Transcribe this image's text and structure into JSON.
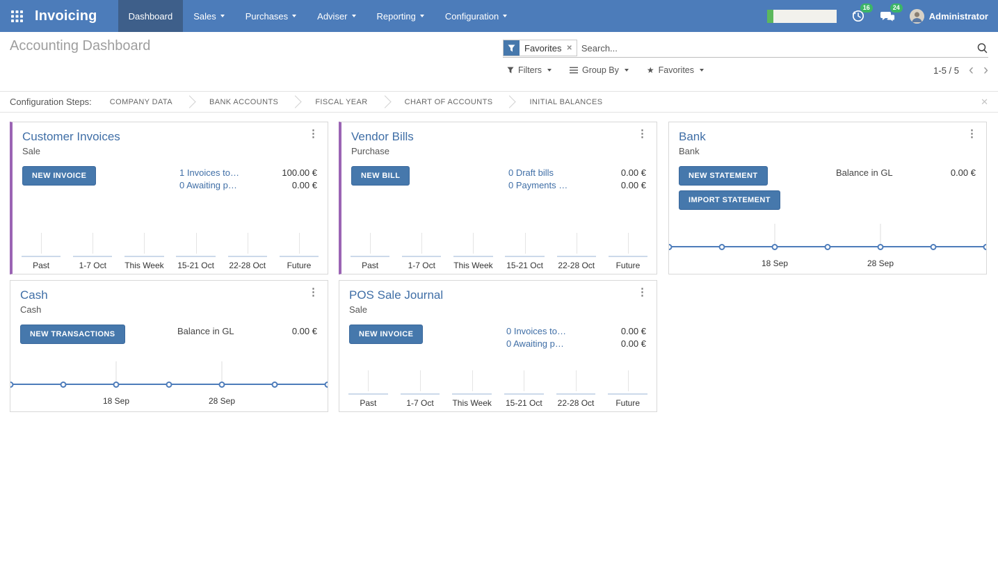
{
  "nav": {
    "app_name": "Invoicing",
    "items": [
      {
        "label": "Dashboard",
        "active": true,
        "dropdown": false
      },
      {
        "label": "Sales",
        "active": false,
        "dropdown": true
      },
      {
        "label": "Purchases",
        "active": false,
        "dropdown": true
      },
      {
        "label": "Adviser",
        "active": false,
        "dropdown": true
      },
      {
        "label": "Reporting",
        "active": false,
        "dropdown": true
      },
      {
        "label": "Configuration",
        "active": false,
        "dropdown": true
      }
    ],
    "systray": {
      "activity_badge": "16",
      "message_badge": "24",
      "user_name": "Administrator"
    }
  },
  "control_panel": {
    "title": "Accounting Dashboard",
    "search": {
      "facet_label": "Favorites",
      "placeholder": "Search..."
    },
    "buttons": [
      {
        "label": "Filters"
      },
      {
        "label": "Group By"
      },
      {
        "label": "Favorites"
      }
    ],
    "pager": {
      "text": "1-5 / 5"
    }
  },
  "config_steps": {
    "label": "Configuration Steps:",
    "steps": [
      "COMPANY DATA",
      "BANK ACCOUNTS",
      "FISCAL YEAR",
      "CHART OF ACCOUNTS",
      "INITIAL BALANCES"
    ]
  },
  "colors": {
    "navbar": "#4c7cba",
    "navbar_active": "#3e5f8a",
    "accent_purple": "#9b64b4",
    "button_blue": "#4678ac",
    "badge_green": "#3cb567",
    "link_blue": "#3f6ea6",
    "chart_line_blue": "#4d7cba",
    "progress_green": "#5cb85c"
  },
  "cards": [
    {
      "id": "customer-invoices",
      "title": "Customer Invoices",
      "subtitle": "Sale",
      "accent": true,
      "buttons": [
        "NEW INVOICE"
      ],
      "rows": [
        {
          "label": "1 Invoices to…",
          "link": true,
          "amount": "100.00 €"
        },
        {
          "label": "0 Awaiting p…",
          "link": true,
          "amount": "0.00 €"
        }
      ],
      "chart": {
        "type": "bar",
        "categories": [
          "Past",
          "1-7 Oct",
          "This Week",
          "15-21 Oct",
          "22-28 Oct",
          "Future"
        ],
        "values": [
          0,
          0,
          0,
          0,
          0,
          0
        ]
      }
    },
    {
      "id": "vendor-bills",
      "title": "Vendor Bills",
      "subtitle": "Purchase",
      "accent": true,
      "buttons": [
        "NEW BILL"
      ],
      "rows": [
        {
          "label": "0 Draft bills",
          "link": true,
          "amount": "0.00 €"
        },
        {
          "label": "0 Payments …",
          "link": true,
          "amount": "0.00 €"
        }
      ],
      "chart": {
        "type": "bar",
        "categories": [
          "Past",
          "1-7 Oct",
          "This Week",
          "15-21 Oct",
          "22-28 Oct",
          "Future"
        ],
        "values": [
          0,
          0,
          0,
          0,
          0,
          0
        ]
      }
    },
    {
      "id": "bank",
      "title": "Bank",
      "subtitle": "Bank",
      "accent": false,
      "buttons": [
        "NEW STATEMENT",
        "IMPORT STATEMENT"
      ],
      "rows": [
        {
          "label": "Balance in GL",
          "link": false,
          "amount": "0.00 €"
        }
      ],
      "chart": {
        "type": "line",
        "points": [
          0,
          0,
          0,
          0,
          0,
          0,
          0
        ],
        "tick_labels": [
          {
            "label": "18 Sep",
            "pos": 0.3333
          },
          {
            "label": "28 Sep",
            "pos": 0.6667
          }
        ]
      }
    },
    {
      "id": "cash",
      "title": "Cash",
      "subtitle": "Cash",
      "accent": false,
      "buttons": [
        "NEW TRANSACTIONS"
      ],
      "rows": [
        {
          "label": "Balance in GL",
          "link": false,
          "amount": "0.00 €"
        }
      ],
      "chart": {
        "type": "line",
        "points": [
          0,
          0,
          0,
          0,
          0,
          0,
          0
        ],
        "tick_labels": [
          {
            "label": "18 Sep",
            "pos": 0.3333
          },
          {
            "label": "28 Sep",
            "pos": 0.6667
          }
        ]
      }
    },
    {
      "id": "pos-sale-journal",
      "title": "POS Sale Journal",
      "subtitle": "Sale",
      "accent": false,
      "buttons": [
        "NEW INVOICE"
      ],
      "rows": [
        {
          "label": "0 Invoices to…",
          "link": true,
          "amount": "0.00 €"
        },
        {
          "label": "0 Awaiting p…",
          "link": true,
          "amount": "0.00 €"
        }
      ],
      "chart": {
        "type": "bar",
        "categories": [
          "Past",
          "1-7 Oct",
          "This Week",
          "15-21 Oct",
          "22-28 Oct",
          "Future"
        ],
        "values": [
          0,
          0,
          0,
          0,
          0,
          0
        ]
      }
    }
  ]
}
